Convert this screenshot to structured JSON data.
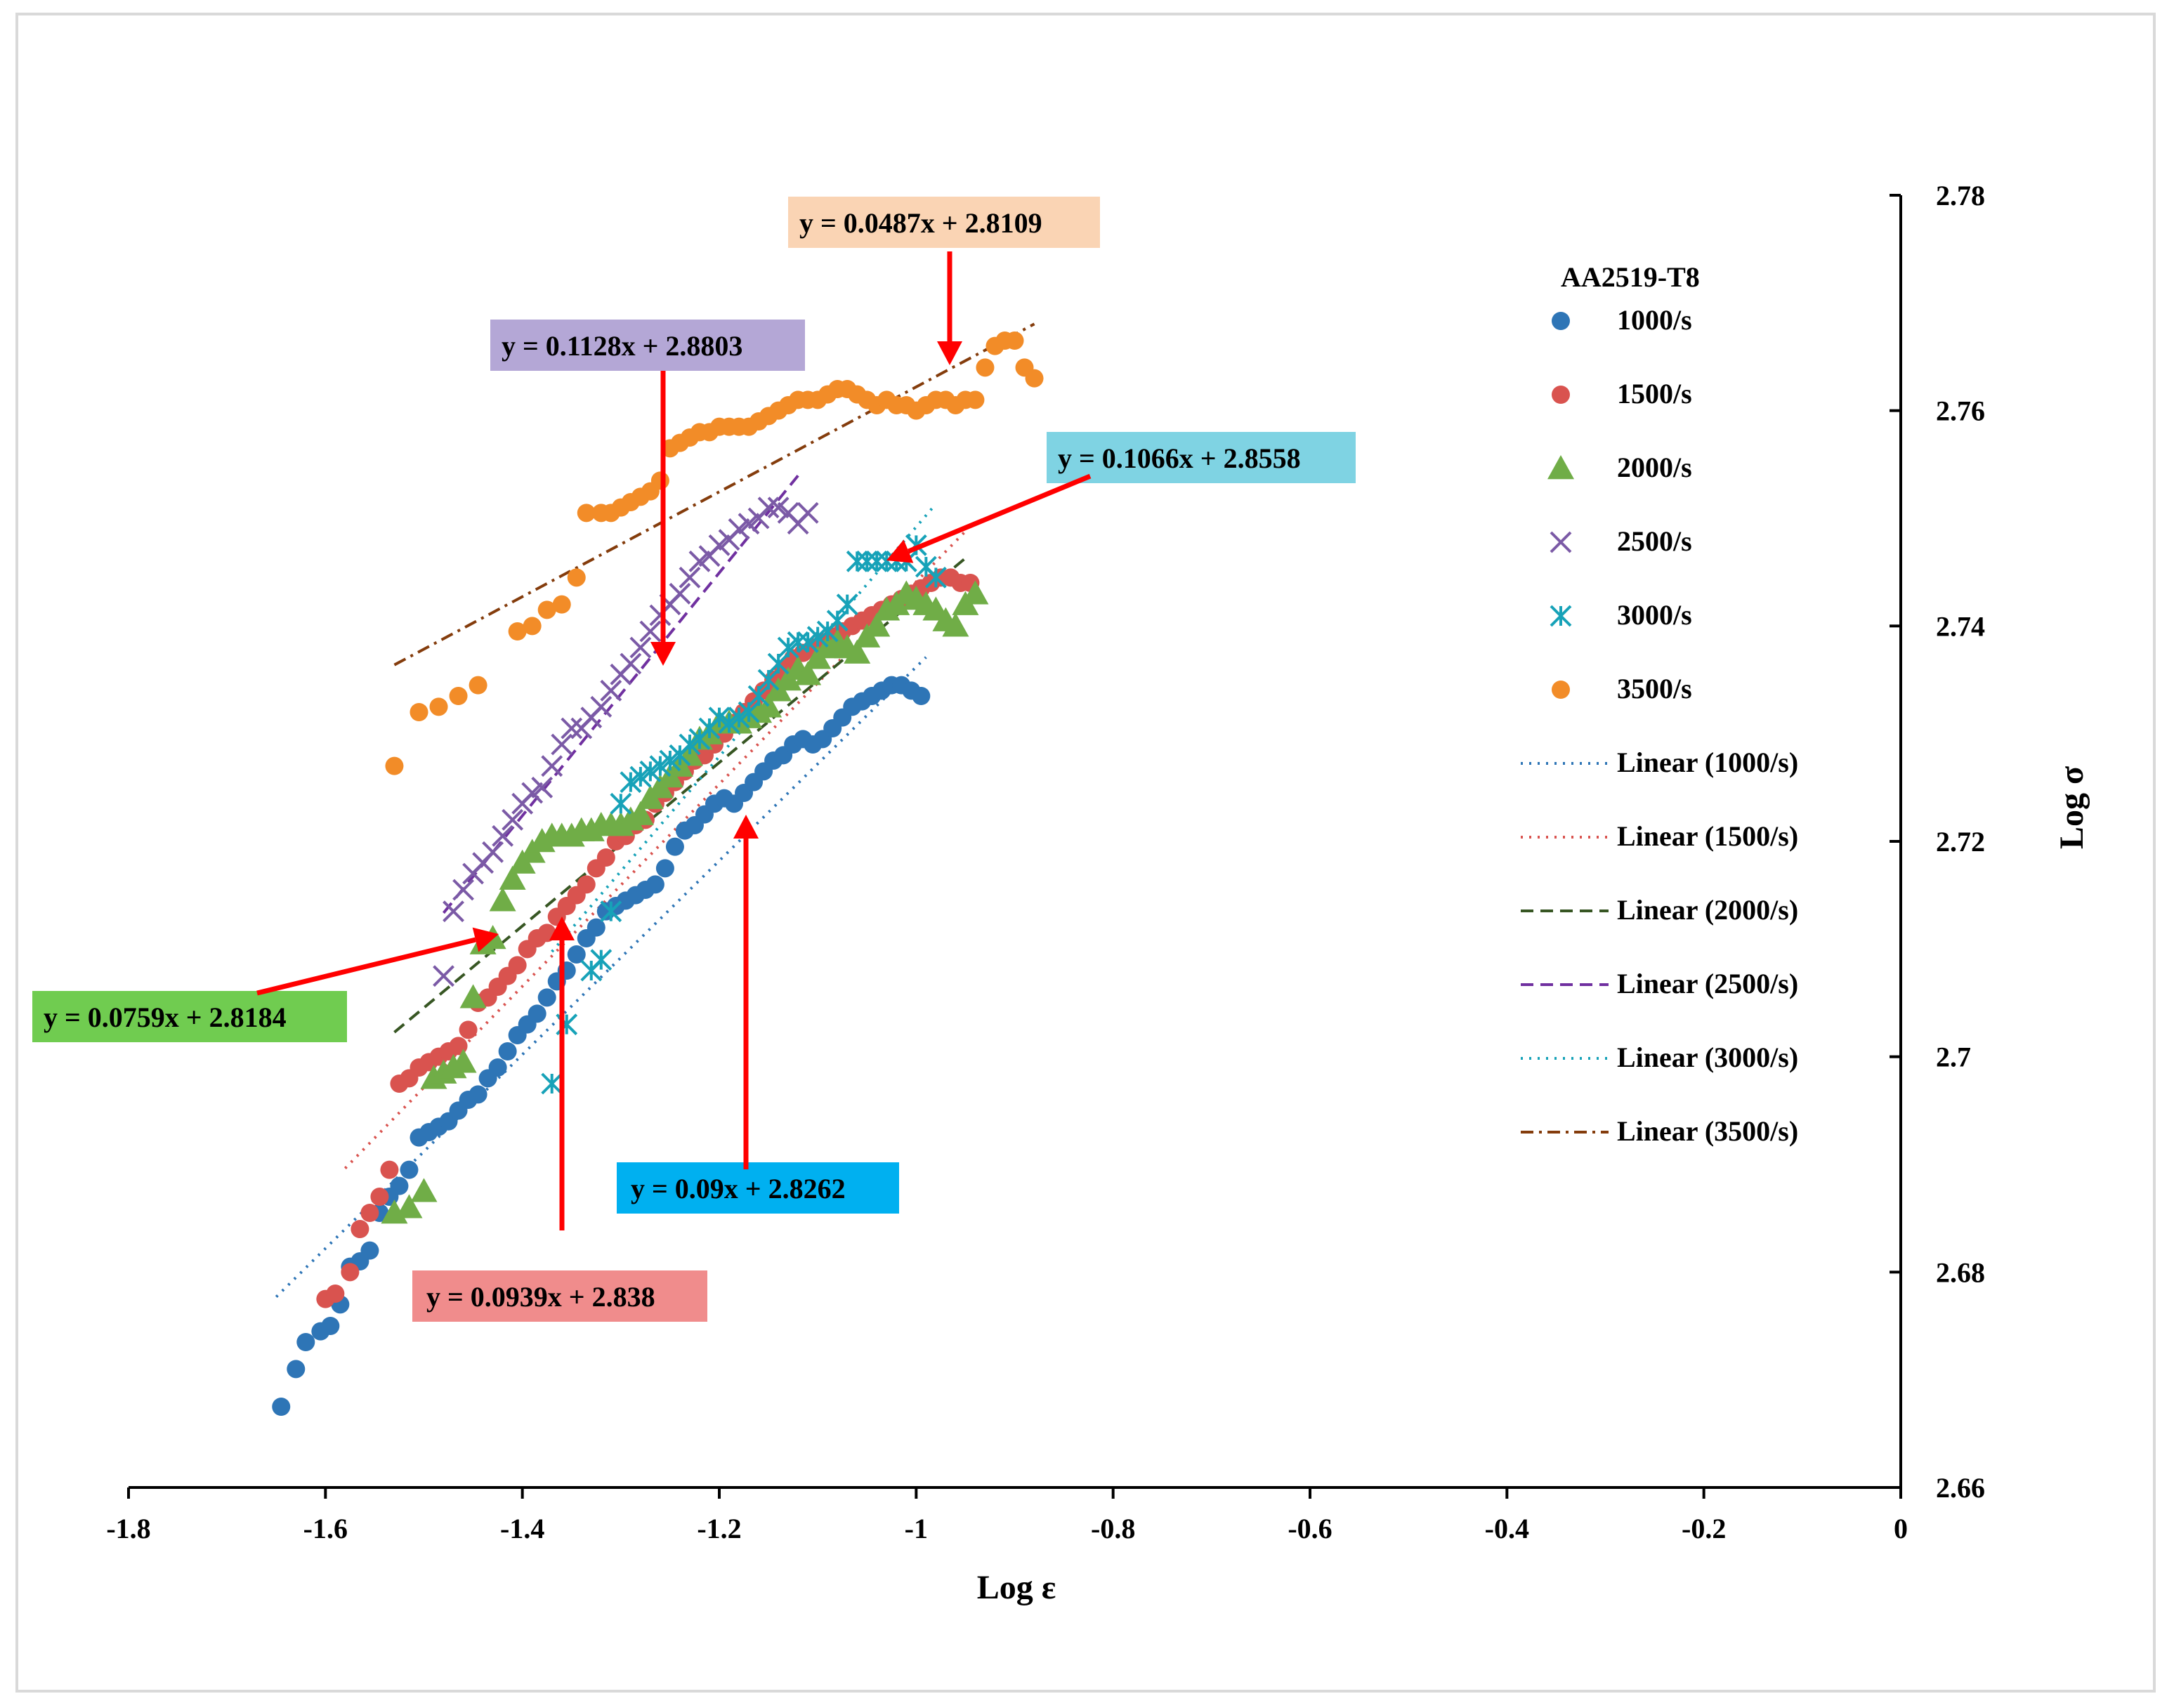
{
  "chart_data": {
    "type": "scatter",
    "title": "",
    "xlabel": "Log ε",
    "ylabel": "Log σ",
    "xlim": [
      -1.8,
      0
    ],
    "ylim": [
      2.66,
      2.78
    ],
    "x_ticks": [
      "-1.8",
      "-1.6",
      "-1.4",
      "-1.2",
      "-1",
      "-0.8",
      "-0.6",
      "-0.4",
      "-0.2",
      "0"
    ],
    "y_ticks": [
      "2.66",
      "2.68",
      "2.7",
      "2.72",
      "2.74",
      "2.76",
      "2.78"
    ],
    "legend_title": "AA2519-T8",
    "series": [
      {
        "name": "1000/s",
        "marker": "circle",
        "color": "#2e75b6",
        "x": [
          -1.645,
          -1.63,
          -1.62,
          -1.605,
          -1.595,
          -1.585,
          -1.575,
          -1.565,
          -1.555,
          -1.545,
          -1.535,
          -1.525,
          -1.515,
          -1.505,
          -1.495,
          -1.485,
          -1.475,
          -1.465,
          -1.455,
          -1.445,
          -1.435,
          -1.425,
          -1.415,
          -1.405,
          -1.395,
          -1.385,
          -1.375,
          -1.365,
          -1.355,
          -1.345,
          -1.335,
          -1.325,
          -1.315,
          -1.305,
          -1.295,
          -1.285,
          -1.275,
          -1.265,
          -1.255,
          -1.245,
          -1.235,
          -1.225,
          -1.215,
          -1.205,
          -1.195,
          -1.185,
          -1.175,
          -1.165,
          -1.155,
          -1.145,
          -1.135,
          -1.125,
          -1.115,
          -1.105,
          -1.095,
          -1.085,
          -1.075,
          -1.065,
          -1.055,
          -1.045,
          -1.035,
          -1.025,
          -1.015,
          -1.005,
          -0.995
        ],
        "y": [
          2.6675,
          2.671,
          2.6735,
          2.6745,
          2.675,
          2.677,
          2.6805,
          2.681,
          2.682,
          2.6855,
          2.687,
          2.688,
          2.6895,
          2.6925,
          2.693,
          2.6935,
          2.694,
          2.695,
          2.696,
          2.6965,
          2.698,
          2.699,
          2.7005,
          2.702,
          2.703,
          2.704,
          2.7055,
          2.707,
          2.708,
          2.7095,
          2.711,
          2.712,
          2.7135,
          2.714,
          2.7145,
          2.715,
          2.7155,
          2.716,
          2.7175,
          2.7195,
          2.721,
          2.7215,
          2.7225,
          2.7235,
          2.724,
          2.7235,
          2.7245,
          2.7255,
          2.7265,
          2.7275,
          2.728,
          2.729,
          2.7295,
          2.729,
          2.7295,
          2.7305,
          2.7315,
          2.7325,
          2.733,
          2.7335,
          2.734,
          2.7345,
          2.7345,
          2.734,
          2.7335
        ],
        "trend": {
          "label": "Linear (1000/s)",
          "slope": 0.09,
          "intercept": 2.8262,
          "x_start": -1.65,
          "x_end": -0.99,
          "dash": "dot",
          "color": "#2e75b6",
          "equation": "y = 0.09x + 2.8262",
          "box_color": "#00b0f0"
        }
      },
      {
        "name": "1500/s",
        "marker": "circle",
        "color": "#d9534f",
        "x": [
          -1.6,
          -1.59,
          -1.575,
          -1.565,
          -1.555,
          -1.545,
          -1.535,
          -1.525,
          -1.515,
          -1.505,
          -1.495,
          -1.485,
          -1.475,
          -1.465,
          -1.455,
          -1.445,
          -1.435,
          -1.425,
          -1.415,
          -1.405,
          -1.395,
          -1.385,
          -1.375,
          -1.365,
          -1.355,
          -1.345,
          -1.335,
          -1.325,
          -1.315,
          -1.305,
          -1.295,
          -1.285,
          -1.275,
          -1.265,
          -1.255,
          -1.245,
          -1.235,
          -1.225,
          -1.215,
          -1.205,
          -1.195,
          -1.185,
          -1.175,
          -1.165,
          -1.155,
          -1.145,
          -1.135,
          -1.125,
          -1.115,
          -1.105,
          -1.095,
          -1.085,
          -1.075,
          -1.065,
          -1.055,
          -1.045,
          -1.035,
          -1.025,
          -1.015,
          -1.005,
          -0.995,
          -0.985,
          -0.975,
          -0.965,
          -0.955,
          -0.945
        ],
        "y": [
          2.6775,
          2.678,
          2.68,
          2.684,
          2.6855,
          2.687,
          2.6895,
          2.6975,
          2.698,
          2.699,
          2.6995,
          2.7,
          2.7005,
          2.701,
          2.7025,
          2.705,
          2.7055,
          2.7065,
          2.7075,
          2.7085,
          2.71,
          2.711,
          2.7115,
          2.713,
          2.714,
          2.715,
          2.716,
          2.7175,
          2.7185,
          2.72,
          2.7205,
          2.7215,
          2.722,
          2.7235,
          2.7245,
          2.7255,
          2.7265,
          2.7275,
          2.728,
          2.729,
          2.73,
          2.731,
          2.732,
          2.733,
          2.734,
          2.735,
          2.736,
          2.737,
          2.7375,
          2.738,
          2.7385,
          2.739,
          2.7395,
          2.74,
          2.7405,
          2.741,
          2.7415,
          2.742,
          2.7425,
          2.743,
          2.7435,
          2.744,
          2.7445,
          2.7445,
          2.744,
          2.744
        ],
        "trend": {
          "label": "Linear (1500/s)",
          "slope": 0.0939,
          "intercept": 2.838,
          "x_start": -1.58,
          "x_end": -0.95,
          "dash": "dot",
          "color": "#d9534f",
          "equation": "y = 0.0939x + 2.838",
          "box_color": "#f08c8c"
        }
      },
      {
        "name": "2000/s",
        "marker": "triangle",
        "color": "#70ad47",
        "x": [
          -1.53,
          -1.515,
          -1.5,
          -1.49,
          -1.48,
          -1.47,
          -1.46,
          -1.45,
          -1.44,
          -1.43,
          -1.42,
          -1.41,
          -1.4,
          -1.39,
          -1.38,
          -1.37,
          -1.36,
          -1.35,
          -1.34,
          -1.33,
          -1.32,
          -1.31,
          -1.3,
          -1.29,
          -1.28,
          -1.27,
          -1.26,
          -1.25,
          -1.24,
          -1.23,
          -1.22,
          -1.21,
          -1.2,
          -1.19,
          -1.18,
          -1.17,
          -1.16,
          -1.15,
          -1.14,
          -1.13,
          -1.12,
          -1.11,
          -1.1,
          -1.09,
          -1.08,
          -1.07,
          -1.06,
          -1.05,
          -1.04,
          -1.03,
          -1.02,
          -1.01,
          -1.0,
          -0.99,
          -0.98,
          -0.97,
          -0.96,
          -0.95,
          -0.94
        ],
        "y": [
          2.6855,
          2.686,
          2.6875,
          2.698,
          2.6985,
          2.699,
          2.6995,
          2.7055,
          2.7105,
          2.711,
          2.7145,
          2.7165,
          2.718,
          2.719,
          2.72,
          2.7205,
          2.7205,
          2.7205,
          2.721,
          2.721,
          2.7215,
          2.7215,
          2.7215,
          2.722,
          2.7225,
          2.724,
          2.725,
          2.726,
          2.727,
          2.728,
          2.7295,
          2.73,
          2.731,
          2.731,
          2.731,
          2.7315,
          2.732,
          2.7325,
          2.734,
          2.735,
          2.736,
          2.7355,
          2.737,
          2.738,
          2.7385,
          2.738,
          2.7375,
          2.739,
          2.74,
          2.7415,
          2.742,
          2.743,
          2.7425,
          2.742,
          2.7415,
          2.7405,
          2.74,
          2.742,
          2.743
        ],
        "trend": {
          "label": "Linear (2000/s)",
          "slope": 0.0759,
          "intercept": 2.8184,
          "x_start": -1.53,
          "x_end": -0.95,
          "dash": "dash",
          "color": "#375623",
          "equation": "y = 0.0759x + 2.8184",
          "box_color": "#70cc50"
        }
      },
      {
        "name": "2500/s",
        "marker": "x",
        "color": "#7b5aa6",
        "x": [
          -1.48,
          -1.47,
          -1.46,
          -1.45,
          -1.44,
          -1.43,
          -1.42,
          -1.41,
          -1.4,
          -1.39,
          -1.38,
          -1.37,
          -1.36,
          -1.35,
          -1.34,
          -1.33,
          -1.32,
          -1.31,
          -1.3,
          -1.29,
          -1.28,
          -1.27,
          -1.26,
          -1.25,
          -1.24,
          -1.23,
          -1.22,
          -1.21,
          -1.2,
          -1.19,
          -1.18,
          -1.17,
          -1.16,
          -1.15,
          -1.14,
          -1.13,
          -1.12,
          -1.11
        ],
        "y": [
          2.7075,
          2.7135,
          2.7155,
          2.717,
          2.718,
          2.719,
          2.7205,
          2.722,
          2.7235,
          2.7245,
          2.725,
          2.727,
          2.729,
          2.7305,
          2.7305,
          2.7315,
          2.7325,
          2.734,
          2.7355,
          2.7365,
          2.738,
          2.7395,
          2.741,
          2.742,
          2.743,
          2.7445,
          2.746,
          2.7465,
          2.7475,
          2.748,
          2.749,
          2.7495,
          2.75,
          2.751,
          2.751,
          2.7505,
          2.7495,
          2.7505
        ],
        "trend": {
          "label": "Linear (2500/s)",
          "slope": 0.1128,
          "intercept": 2.8803,
          "x_start": -1.48,
          "x_end": -1.12,
          "dash": "dash",
          "color": "#7030a0",
          "equation": "y = 0.1128x + 2.8803",
          "box_color": "#b4a7d6"
        }
      },
      {
        "name": "3000/s",
        "marker": "asterisk",
        "color": "#17a2b8",
        "x": [
          -1.37,
          -1.355,
          -1.33,
          -1.32,
          -1.31,
          -1.3,
          -1.29,
          -1.28,
          -1.27,
          -1.26,
          -1.25,
          -1.24,
          -1.23,
          -1.22,
          -1.21,
          -1.2,
          -1.19,
          -1.18,
          -1.17,
          -1.16,
          -1.15,
          -1.14,
          -1.13,
          -1.12,
          -1.11,
          -1.1,
          -1.09,
          -1.08,
          -1.07,
          -1.06,
          -1.05,
          -1.04,
          -1.03,
          -1.02,
          -1.01,
          -1.0,
          -0.99,
          -0.98
        ],
        "y": [
          2.6975,
          2.703,
          2.708,
          2.709,
          2.7135,
          2.7235,
          2.7255,
          2.726,
          2.7265,
          2.727,
          2.7275,
          2.728,
          2.729,
          2.7295,
          2.7305,
          2.7315,
          2.731,
          2.7315,
          2.732,
          2.7335,
          2.735,
          2.7365,
          2.738,
          2.7385,
          2.7385,
          2.739,
          2.7395,
          2.7405,
          2.742,
          2.746,
          2.746,
          2.746,
          2.746,
          2.746,
          2.746,
          2.7475,
          2.7455,
          2.7445
        ],
        "trend": {
          "label": "Linear (3000/s)",
          "slope": 0.1066,
          "intercept": 2.8558,
          "x_start": -1.37,
          "x_end": -0.98,
          "dash": "dot",
          "color": "#17a2b8",
          "equation": "y = 0.1066x + 2.8558",
          "box_color": "#7fd3e3"
        }
      },
      {
        "name": "3500/s",
        "marker": "circle",
        "color": "#f28c28",
        "x": [
          -1.53,
          -1.505,
          -1.485,
          -1.465,
          -1.445,
          -1.405,
          -1.39,
          -1.375,
          -1.36,
          -1.345,
          -1.335,
          -1.32,
          -1.31,
          -1.3,
          -1.29,
          -1.28,
          -1.27,
          -1.26,
          -1.25,
          -1.24,
          -1.23,
          -1.22,
          -1.21,
          -1.2,
          -1.19,
          -1.18,
          -1.17,
          -1.16,
          -1.15,
          -1.14,
          -1.13,
          -1.12,
          -1.11,
          -1.1,
          -1.09,
          -1.08,
          -1.07,
          -1.06,
          -1.05,
          -1.04,
          -1.03,
          -1.02,
          -1.01,
          -1.0,
          -0.99,
          -0.98,
          -0.97,
          -0.96,
          -0.95,
          -0.94,
          -0.93,
          -0.92,
          -0.91,
          -0.9,
          -0.89,
          -0.88
        ],
        "y": [
          2.727,
          2.732,
          2.7325,
          2.7335,
          2.7345,
          2.7395,
          2.74,
          2.7415,
          2.742,
          2.7445,
          2.7505,
          2.7505,
          2.7505,
          2.751,
          2.7515,
          2.752,
          2.7525,
          2.7535,
          2.7565,
          2.757,
          2.7575,
          2.758,
          2.758,
          2.7585,
          2.7585,
          2.7585,
          2.7585,
          2.759,
          2.7595,
          2.76,
          2.7605,
          2.761,
          2.761,
          2.761,
          2.7615,
          2.762,
          2.762,
          2.7615,
          2.761,
          2.7605,
          2.761,
          2.7605,
          2.7605,
          2.76,
          2.7605,
          2.761,
          2.761,
          2.7605,
          2.761,
          2.761,
          2.764,
          2.766,
          2.7665,
          2.7665,
          2.764,
          2.763
        ],
        "trend": {
          "label": "Linear (3500/s)",
          "slope": 0.0487,
          "intercept": 2.8109,
          "x_start": -1.53,
          "x_end": -0.88,
          "dash": "dashdot",
          "color": "#843c0c",
          "equation": "y = 0.0487x + 2.8109",
          "box_color": "#fad4b4"
        }
      }
    ]
  }
}
